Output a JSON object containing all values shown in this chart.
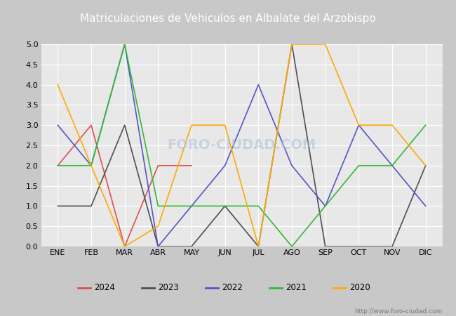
{
  "title": "Matriculaciones de Vehiculos en Albalate del Arzobispo",
  "months": [
    "ENE",
    "FEB",
    "MAR",
    "ABR",
    "MAY",
    "JUN",
    "JUL",
    "AGO",
    "SEP",
    "OCT",
    "NOV",
    "DIC"
  ],
  "series": {
    "2024": [
      2,
      3,
      0,
      2,
      2,
      null,
      null,
      null,
      null,
      null,
      null,
      null
    ],
    "2023": [
      1,
      1,
      3,
      0,
      0,
      1,
      0,
      5,
      0,
      0,
      0,
      2
    ],
    "2022": [
      3,
      2,
      5,
      0,
      1,
      2,
      4,
      2,
      1,
      3,
      2,
      1
    ],
    "2021": [
      2,
      2,
      5,
      1,
      1,
      1,
      1,
      0,
      1,
      2,
      2,
      3
    ],
    "2020": [
      4,
      2,
      0,
      0.5,
      3,
      3,
      0,
      5,
      5,
      3,
      3,
      2
    ]
  },
  "colors": {
    "2024": "#e05050",
    "2023": "#505050",
    "2022": "#5555cc",
    "2021": "#33bb33",
    "2020": "#ffaa00"
  },
  "ylim": [
    0,
    5.0
  ],
  "yticks": [
    0.0,
    0.5,
    1.0,
    1.5,
    2.0,
    2.5,
    3.0,
    3.5,
    4.0,
    4.5,
    5.0
  ],
  "title_fontsize": 11,
  "axis_fontsize": 8,
  "legend_fontsize": 8.5,
  "outer_bg_color": "#c8c8c8",
  "plot_bg_color": "#e8e8e8",
  "title_bg_color": "#5b8fc9",
  "title_text_color": "#ffffff",
  "grid_color": "#ffffff",
  "watermark_url": "http://www.foro-ciudad.com",
  "watermark_center": "FORO-CIUDAD.COM",
  "linewidth": 1.2
}
